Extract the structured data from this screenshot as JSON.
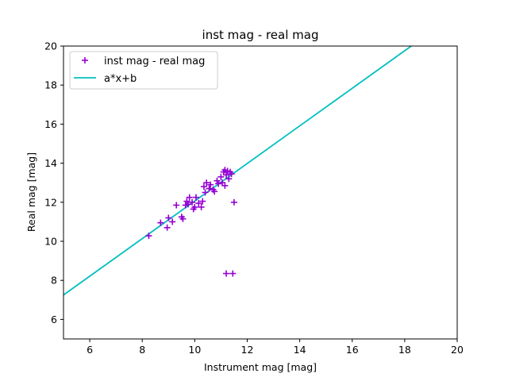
{
  "chart_data": {
    "type": "scatter",
    "title": "inst mag - real mag",
    "xlabel": "Instrument mag [mag]",
    "ylabel": "Real mag [mag]",
    "xlim": [
      5,
      20
    ],
    "ylim": [
      5,
      20
    ],
    "xticks": [
      "6",
      "8",
      "10",
      "12",
      "14",
      "16",
      "18",
      "20"
    ],
    "yticks": [
      "6",
      "8",
      "10",
      "12",
      "14",
      "16",
      "18",
      "20"
    ],
    "grid": false,
    "legend_position": "top-left",
    "series": [
      {
        "name": "inst mag - real mag",
        "kind": "scatter",
        "marker": "+",
        "color": "#9400d3",
        "points": [
          [
            8.25,
            10.28
          ],
          [
            8.7,
            10.95
          ],
          [
            8.95,
            10.7
          ],
          [
            9.0,
            11.2
          ],
          [
            9.15,
            11.0
          ],
          [
            9.3,
            11.85
          ],
          [
            9.5,
            11.25
          ],
          [
            9.55,
            11.15
          ],
          [
            9.65,
            11.85
          ],
          [
            9.7,
            12.05
          ],
          [
            9.75,
            11.9
          ],
          [
            9.8,
            12.25
          ],
          [
            9.9,
            12.0
          ],
          [
            9.95,
            11.65
          ],
          [
            10.0,
            11.75
          ],
          [
            10.05,
            12.25
          ],
          [
            10.15,
            11.95
          ],
          [
            10.25,
            11.75
          ],
          [
            10.3,
            12.05
          ],
          [
            10.35,
            12.8
          ],
          [
            10.4,
            12.5
          ],
          [
            10.45,
            13.0
          ],
          [
            10.55,
            12.7
          ],
          [
            10.6,
            12.9
          ],
          [
            10.7,
            12.65
          ],
          [
            10.75,
            12.55
          ],
          [
            10.85,
            13.1
          ],
          [
            10.9,
            12.95
          ],
          [
            11.0,
            13.3
          ],
          [
            11.05,
            13.0
          ],
          [
            11.1,
            13.55
          ],
          [
            11.15,
            13.65
          ],
          [
            11.15,
            12.85
          ],
          [
            11.2,
            13.4
          ],
          [
            11.25,
            13.6
          ],
          [
            11.3,
            13.2
          ],
          [
            11.35,
            13.55
          ],
          [
            11.4,
            13.45
          ],
          [
            11.2,
            8.35
          ],
          [
            11.45,
            8.35
          ],
          [
            11.5,
            12.0
          ]
        ]
      },
      {
        "name": "a*x+b",
        "kind": "line",
        "color": "#00bfbf",
        "x": [
          5,
          18.25
        ],
        "y": [
          7.25,
          20
        ]
      }
    ]
  }
}
